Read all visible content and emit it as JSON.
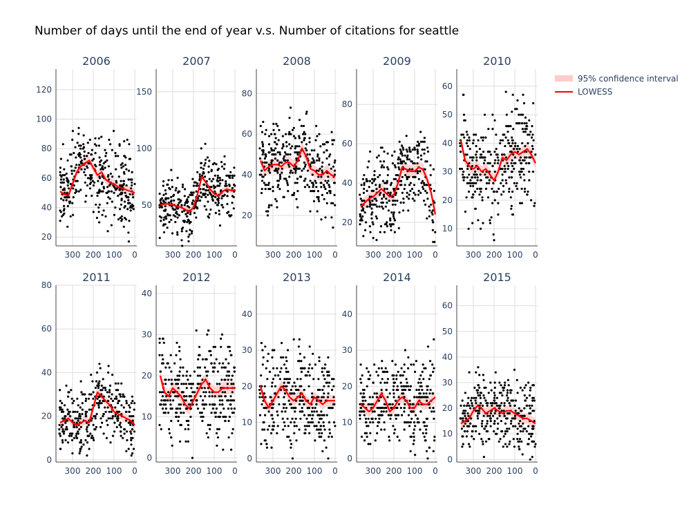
{
  "title": "Number of days until the end of year v.s. Number of citations for seattle",
  "legend": {
    "placement": "top-right",
    "items": [
      {
        "label": "95% confidence interval",
        "color": "#ffcccc",
        "kind": "band"
      },
      {
        "label": "LOWESS",
        "color": "#ff0000",
        "kind": "line"
      }
    ]
  },
  "colors": {
    "points": "#000000",
    "lowess": "#ff0000",
    "band": "#ffcccc",
    "grid": "#dddddd",
    "axis": "#444444",
    "text": "#2a3f5f"
  },
  "chart_data": [
    {
      "type": "scatter",
      "title": "2006",
      "xlim": [
        380,
        -10
      ],
      "ylim": [
        14,
        134
      ],
      "xticks": [
        300,
        200,
        100,
        0
      ],
      "yticks": [
        20,
        40,
        60,
        80,
        100,
        120
      ],
      "lowess": {
        "x": [
          360,
          340,
          320,
          300,
          280,
          260,
          240,
          220,
          200,
          180,
          160,
          140,
          120,
          100,
          80,
          60,
          40,
          20,
          0
        ],
        "y": [
          51,
          49,
          48,
          56,
          64,
          68,
          70,
          72,
          67,
          62,
          64,
          59,
          57,
          56,
          54,
          53,
          52,
          51,
          50
        ]
      },
      "band_halfwidth": 3,
      "n_points": 340,
      "point_spread": 13
    },
    {
      "type": "scatter",
      "title": "2007",
      "xlim": [
        380,
        -10
      ],
      "ylim": [
        14,
        170
      ],
      "xticks": [
        300,
        200,
        100,
        0
      ],
      "yticks": [
        50,
        100,
        150
      ],
      "lowess": {
        "x": [
          360,
          340,
          320,
          300,
          280,
          260,
          240,
          220,
          200,
          180,
          160,
          140,
          120,
          100,
          80,
          60,
          40,
          20,
          0
        ],
        "y": [
          50,
          51,
          51,
          50,
          49,
          48,
          46,
          44,
          48,
          60,
          75,
          70,
          64,
          60,
          58,
          62,
          64,
          63,
          63
        ]
      },
      "band_halfwidth": 3,
      "n_points": 340,
      "point_spread": 13
    },
    {
      "type": "scatter",
      "title": "2008",
      "xlim": [
        380,
        -10
      ],
      "ylim": [
        5,
        92
      ],
      "xticks": [
        300,
        200,
        100,
        0
      ],
      "yticks": [
        20,
        40,
        60,
        80
      ],
      "lowess": {
        "x": [
          360,
          340,
          320,
          300,
          280,
          260,
          240,
          220,
          200,
          180,
          160,
          140,
          120,
          100,
          80,
          60,
          40,
          20,
          0
        ],
        "y": [
          47,
          42,
          44,
          45,
          45,
          44,
          46,
          46,
          44,
          47,
          53,
          49,
          43,
          42,
          40,
          40,
          42,
          40,
          39
        ]
      },
      "band_halfwidth": 3,
      "n_points": 340,
      "point_spread": 10
    },
    {
      "type": "scatter",
      "title": "2009",
      "xlim": [
        380,
        -10
      ],
      "ylim": [
        8,
        98
      ],
      "xticks": [
        300,
        200,
        100,
        0
      ],
      "yticks": [
        20,
        40,
        60,
        80
      ],
      "lowess": {
        "x": [
          360,
          340,
          320,
          300,
          280,
          260,
          240,
          220,
          200,
          180,
          160,
          140,
          120,
          100,
          80,
          60,
          40,
          20,
          0
        ],
        "y": [
          28,
          30,
          32,
          33,
          35,
          37,
          35,
          33,
          34,
          40,
          48,
          47,
          46,
          46,
          48,
          47,
          42,
          35,
          24
        ]
      },
      "band_halfwidth": 3,
      "n_points": 340,
      "point_spread": 10
    },
    {
      "type": "scatter",
      "title": "2010",
      "xlim": [
        380,
        -10
      ],
      "ylim": [
        4,
        66
      ],
      "xticks": [
        300,
        200,
        100,
        0
      ],
      "yticks": [
        10,
        20,
        30,
        40,
        50,
        60
      ],
      "lowess": {
        "x": [
          360,
          340,
          320,
          300,
          280,
          260,
          240,
          220,
          200,
          180,
          160,
          140,
          120,
          100,
          80,
          60,
          40,
          20,
          0
        ],
        "y": [
          41,
          34,
          32,
          31,
          32,
          30,
          31,
          29,
          27,
          30,
          35,
          34,
          36,
          37,
          36,
          37,
          38,
          36,
          33
        ]
      },
      "band_halfwidth": 2,
      "n_points": 340,
      "point_spread": 9
    },
    {
      "type": "scatter",
      "title": "2011",
      "xlim": [
        380,
        -10
      ],
      "ylim": [
        -1,
        80
      ],
      "xticks": [
        300,
        200,
        100,
        0
      ],
      "yticks": [
        0,
        20,
        40,
        60,
        80
      ],
      "lowess": {
        "x": [
          360,
          340,
          320,
          300,
          280,
          260,
          240,
          220,
          200,
          180,
          160,
          140,
          120,
          100,
          80,
          60,
          40,
          20,
          0
        ],
        "y": [
          17,
          18,
          19,
          17,
          16,
          17,
          18,
          17,
          24,
          31,
          29,
          27,
          25,
          22,
          21,
          20,
          19,
          18,
          16
        ]
      },
      "band_halfwidth": 2,
      "n_points": 340,
      "point_spread": 7
    },
    {
      "type": "scatter",
      "title": "2012",
      "xlim": [
        380,
        -10
      ],
      "ylim": [
        -1,
        42
      ],
      "xticks": [
        300,
        200,
        100,
        0
      ],
      "yticks": [
        0,
        10,
        20,
        30,
        40
      ],
      "lowess": {
        "x": [
          360,
          340,
          320,
          300,
          280,
          260,
          240,
          220,
          200,
          180,
          160,
          140,
          120,
          100,
          80,
          60,
          40,
          20,
          0
        ],
        "y": [
          20,
          16,
          15,
          17,
          16,
          15,
          13,
          12,
          14,
          16,
          18,
          19,
          17,
          16,
          16,
          17,
          17,
          17,
          17
        ]
      },
      "band_halfwidth": 1.5,
      "n_points": 340,
      "point_spread": 6
    },
    {
      "type": "scatter",
      "title": "2013",
      "xlim": [
        380,
        -10
      ],
      "ylim": [
        -1,
        48
      ],
      "xticks": [
        300,
        200,
        100,
        0
      ],
      "yticks": [
        0,
        10,
        20,
        30,
        40
      ],
      "lowess": {
        "x": [
          360,
          340,
          320,
          300,
          280,
          260,
          240,
          220,
          200,
          180,
          160,
          140,
          120,
          100,
          80,
          60,
          40,
          20,
          0
        ],
        "y": [
          20,
          16,
          14,
          16,
          18,
          20,
          19,
          17,
          16,
          17,
          18,
          16,
          15,
          17,
          16,
          15,
          16,
          16,
          16
        ]
      },
      "band_halfwidth": 1.5,
      "n_points": 340,
      "point_spread": 6
    },
    {
      "type": "scatter",
      "title": "2014",
      "xlim": [
        380,
        -10
      ],
      "ylim": [
        -1,
        48
      ],
      "xticks": [
        300,
        200,
        100,
        0
      ],
      "yticks": [
        0,
        10,
        20,
        30,
        40
      ],
      "lowess": {
        "x": [
          360,
          340,
          320,
          300,
          280,
          260,
          240,
          220,
          200,
          180,
          160,
          140,
          120,
          100,
          80,
          60,
          40,
          20,
          0
        ],
        "y": [
          15,
          14,
          13,
          14,
          16,
          18,
          16,
          13,
          14,
          16,
          17,
          16,
          14,
          14,
          16,
          15,
          15,
          16,
          17
        ]
      },
      "band_halfwidth": 1.5,
      "n_points": 340,
      "point_spread": 6
    },
    {
      "type": "scatter",
      "title": "2015",
      "xlim": [
        380,
        -10
      ],
      "ylim": [
        -1,
        68
      ],
      "xticks": [
        300,
        200,
        100,
        0
      ],
      "yticks": [
        0,
        10,
        20,
        30,
        40,
        50,
        60
      ],
      "lowess": {
        "x": [
          360,
          340,
          320,
          300,
          280,
          260,
          240,
          220,
          200,
          180,
          160,
          140,
          120,
          100,
          80,
          60,
          40,
          20,
          0
        ],
        "y": [
          14,
          15,
          16,
          19,
          21,
          20,
          18,
          19,
          20,
          19,
          18,
          19,
          19,
          18,
          17,
          16,
          16,
          15,
          14
        ]
      },
      "band_halfwidth": 2,
      "n_points": 340,
      "point_spread": 7
    }
  ]
}
